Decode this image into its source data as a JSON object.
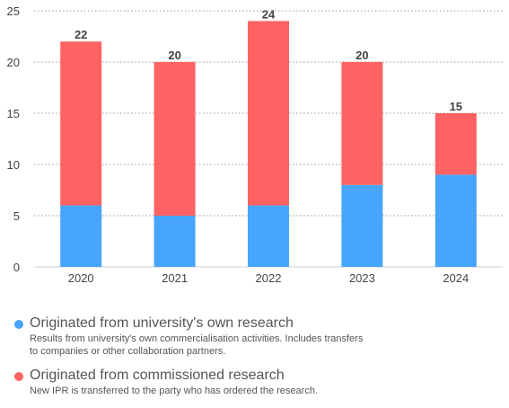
{
  "chart_data": {
    "type": "bar",
    "stacked": true,
    "categories": [
      "2020",
      "2021",
      "2022",
      "2023",
      "2024"
    ],
    "series": [
      {
        "name": "Originated from university's own research",
        "color": "#47a5fb",
        "values": [
          6,
          5,
          6,
          8,
          9
        ]
      },
      {
        "name": "Originated from commissioned research",
        "color": "#fe6262",
        "values": [
          16,
          15,
          18,
          12,
          6
        ]
      }
    ],
    "totals": [
      22,
      20,
      24,
      20,
      15
    ],
    "ylim": [
      0,
      25
    ],
    "yticks": [
      0,
      5,
      10,
      15,
      20,
      25
    ],
    "grid": true,
    "grid_style": "dotted",
    "legend_position": "bottom"
  },
  "legend": [
    {
      "title": "Originated from university's own research",
      "description": "Results from university's own commercialisation activities. Includes transfers to companies or other collaboration partners.",
      "color": "#47a5fb"
    },
    {
      "title": "Originated from commissioned research",
      "description": "New IPR is transferred to the party who has ordered the research.",
      "color": "#fe6262"
    }
  ]
}
